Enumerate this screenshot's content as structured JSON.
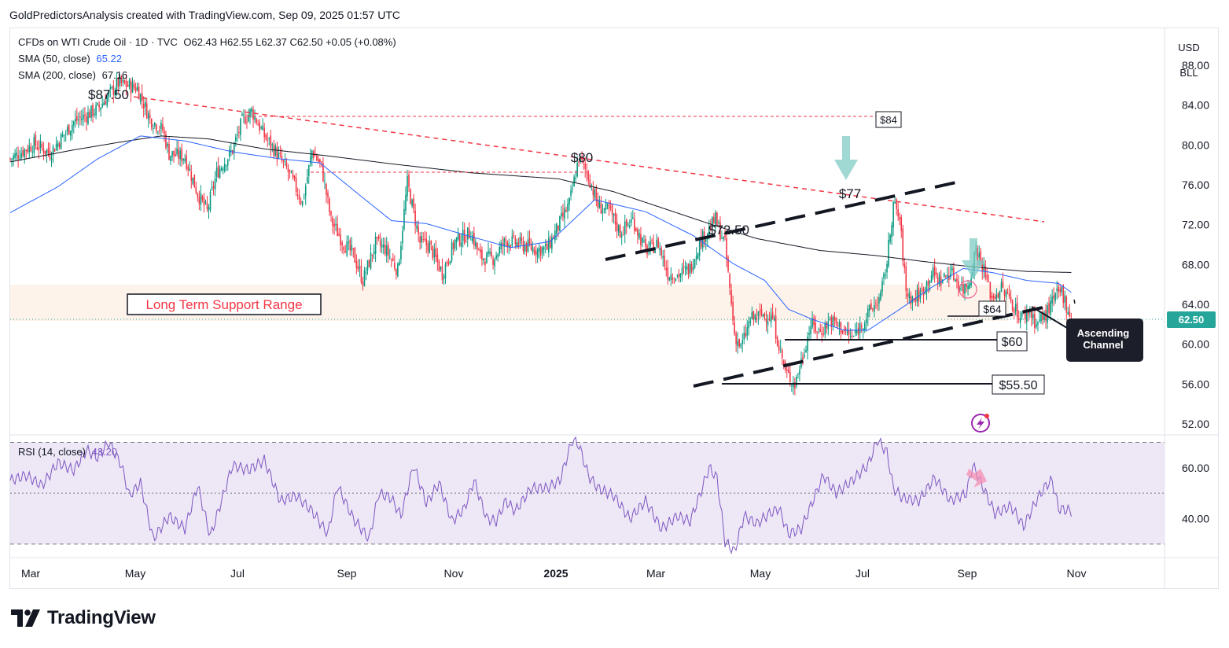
{
  "header": {
    "text": "GoldPredictorsAnalysis created with TradingView.com, Sep 09, 2025 01:57 UTC"
  },
  "legend": {
    "symbol": "CFDs on WTI Crude Oil · 1D · TVC",
    "ohlc": "O62.43  H62.55  L62.37  C62.50  +0.05 (+0.08%)",
    "sma50_label": "SMA (50, close)",
    "sma50_value": "65.22",
    "sma200_label": "SMA (200, close)",
    "sma200_value": "67.16",
    "rsi_label": "RSI (14, close)",
    "rsi_value": "43.20"
  },
  "price_scale": {
    "currency": "USD",
    "unit": "BLL",
    "current_price": "62.50"
  },
  "logo": {
    "text": "TradingView"
  },
  "colors": {
    "up": "#089981",
    "down": "#f23645",
    "sma50": "#2962ff",
    "sma200": "#131722",
    "rsi": "#7e57c2",
    "rsi_band": "#ede7f6",
    "resistance": "#f23645",
    "price_tag": "#26a69a",
    "arrow": "#80cbc4",
    "support_zone": "#fdf3ea"
  },
  "chart_data": {
    "type": "candlestick",
    "price_axis": {
      "ticks": [
        "52.00",
        "56.00",
        "60.00",
        "64.00",
        "68.00",
        "72.00",
        "76.00",
        "80.00",
        "84.00",
        "88.00"
      ],
      "range": [
        50.9,
        91.7
      ]
    },
    "time_axis": {
      "labels": [
        "Mar",
        "May",
        "Jul",
        "Sep",
        "Nov",
        "2025",
        "Mar",
        "May",
        "Jul",
        "Sep",
        "Nov"
      ],
      "bold": [
        "2025"
      ]
    },
    "rsi_axis": {
      "ticks": [
        "40.00",
        "60.00"
      ],
      "range": [
        25,
        72
      ],
      "bands": [
        30,
        50,
        70
      ]
    },
    "series_anchors": {
      "price": [
        [
          0,
          78.6
        ],
        [
          15,
          80.1
        ],
        [
          25,
          79.2
        ],
        [
          40,
          82.3
        ],
        [
          55,
          83.6
        ],
        [
          68,
          86.2
        ],
        [
          80,
          85.7
        ],
        [
          88,
          82.6
        ],
        [
          96,
          81.5
        ],
        [
          100,
          79.1
        ],
        [
          110,
          78.8
        ],
        [
          118,
          75.1
        ],
        [
          124,
          73.3
        ],
        [
          130,
          77.2
        ],
        [
          140,
          79.5
        ],
        [
          146,
          82.4
        ],
        [
          152,
          83.4
        ],
        [
          160,
          80.9
        ],
        [
          166,
          79.6
        ],
        [
          176,
          77.0
        ],
        [
          184,
          74.2
        ],
        [
          190,
          79.4
        ],
        [
          196,
          77.8
        ],
        [
          202,
          72.4
        ],
        [
          210,
          70.1
        ],
        [
          216,
          69.0
        ],
        [
          222,
          66.4
        ],
        [
          230,
          70.1
        ],
        [
          236,
          69.6
        ],
        [
          244,
          67.4
        ],
        [
          250,
          76.2
        ],
        [
          258,
          70.2
        ],
        [
          264,
          69.9
        ],
        [
          272,
          67.1
        ],
        [
          280,
          70.3
        ],
        [
          290,
          71.2
        ],
        [
          296,
          68.7
        ],
        [
          304,
          68.6
        ],
        [
          312,
          70.4
        ],
        [
          322,
          70.0
        ],
        [
          332,
          69.5
        ],
        [
          338,
          69.6
        ],
        [
          344,
          71.5
        ],
        [
          352,
          74.1
        ],
        [
          358,
          78.7
        ],
        [
          364,
          76.9
        ],
        [
          370,
          73.9
        ],
        [
          378,
          73.2
        ],
        [
          384,
          71.2
        ],
        [
          392,
          72.5
        ],
        [
          400,
          69.4
        ],
        [
          408,
          70.1
        ],
        [
          414,
          67.1
        ],
        [
          420,
          66.9
        ],
        [
          428,
          67.6
        ],
        [
          434,
          70.2
        ],
        [
          444,
          72.5
        ],
        [
          450,
          70.0
        ],
        [
          456,
          61.0
        ],
        [
          460,
          59.6
        ],
        [
          466,
          62.5
        ],
        [
          474,
          63.0
        ],
        [
          480,
          62.6
        ],
        [
          488,
          57.2
        ],
        [
          494,
          56.0
        ],
        [
          498,
          58.3
        ],
        [
          504,
          62.0
        ],
        [
          510,
          61.2
        ],
        [
          516,
          62.4
        ],
        [
          522,
          61.8
        ],
        [
          530,
          60.6
        ],
        [
          540,
          63.0
        ],
        [
          548,
          64.8
        ],
        [
          552,
          68.3
        ],
        [
          556,
          74.1
        ],
        [
          560,
          72.5
        ],
        [
          564,
          65.3
        ],
        [
          568,
          64.5
        ],
        [
          574,
          65.2
        ],
        [
          580,
          67.1
        ],
        [
          586,
          66.4
        ],
        [
          592,
          67.3
        ],
        [
          600,
          65.5
        ],
        [
          604,
          66.4
        ],
        [
          608,
          69.6
        ],
        [
          612,
          68.0
        ],
        [
          618,
          64.6
        ],
        [
          624,
          65.6
        ],
        [
          630,
          64.4
        ],
        [
          636,
          62.6
        ],
        [
          642,
          63.3
        ],
        [
          646,
          62.0
        ],
        [
          652,
          63.0
        ],
        [
          658,
          64.7
        ],
        [
          662,
          65.3
        ],
        [
          668,
          62.5
        ]
      ],
      "sma50": [
        [
          0,
          73.2
        ],
        [
          30,
          75.8
        ],
        [
          55,
          78.6
        ],
        [
          82,
          80.9
        ],
        [
          110,
          80.4
        ],
        [
          140,
          79.3
        ],
        [
          170,
          78.6
        ],
        [
          195,
          78.2
        ],
        [
          222,
          74.7
        ],
        [
          240,
          72.4
        ],
        [
          262,
          72.1
        ],
        [
          290,
          70.8
        ],
        [
          315,
          69.7
        ],
        [
          340,
          70.3
        ],
        [
          368,
          74.5
        ],
        [
          400,
          73.3
        ],
        [
          430,
          70.9
        ],
        [
          455,
          68.1
        ],
        [
          475,
          66.4
        ],
        [
          490,
          63.5
        ],
        [
          505,
          62.5
        ],
        [
          525,
          61.4
        ],
        [
          540,
          61.4
        ],
        [
          560,
          63.5
        ],
        [
          580,
          65.7
        ],
        [
          600,
          67.6
        ],
        [
          618,
          67.2
        ],
        [
          640,
          66.4
        ],
        [
          660,
          66.1
        ],
        [
          668,
          65.2
        ]
      ],
      "sma200": [
        [
          0,
          78.3
        ],
        [
          40,
          79.5
        ],
        [
          70,
          80.3
        ],
        [
          95,
          80.9
        ],
        [
          125,
          80.6
        ],
        [
          160,
          79.6
        ],
        [
          200,
          78.9
        ],
        [
          240,
          78.1
        ],
        [
          290,
          77.2
        ],
        [
          345,
          76.6
        ],
        [
          380,
          75.3
        ],
        [
          410,
          73.7
        ],
        [
          440,
          72.1
        ],
        [
          470,
          70.6
        ],
        [
          510,
          69.4
        ],
        [
          545,
          68.9
        ],
        [
          575,
          68.3
        ],
        [
          610,
          67.7
        ],
        [
          640,
          67.3
        ],
        [
          668,
          67.2
        ]
      ],
      "rsi": [
        [
          0,
          55
        ],
        [
          10,
          57
        ],
        [
          20,
          53
        ],
        [
          30,
          62
        ],
        [
          40,
          59
        ],
        [
          48,
          67
        ],
        [
          55,
          64
        ],
        [
          62,
          70
        ],
        [
          70,
          61
        ],
        [
          75,
          49
        ],
        [
          82,
          54
        ],
        [
          90,
          32
        ],
        [
          100,
          41
        ],
        [
          110,
          36
        ],
        [
          118,
          53
        ],
        [
          126,
          33
        ],
        [
          140,
          61
        ],
        [
          150,
          59
        ],
        [
          160,
          63
        ],
        [
          170,
          47
        ],
        [
          180,
          49
        ],
        [
          190,
          43
        ],
        [
          200,
          34
        ],
        [
          206,
          53
        ],
        [
          216,
          40
        ],
        [
          226,
          32
        ],
        [
          232,
          50
        ],
        [
          240,
          48
        ],
        [
          246,
          41
        ],
        [
          254,
          61
        ],
        [
          262,
          46
        ],
        [
          270,
          54
        ],
        [
          278,
          39
        ],
        [
          286,
          44
        ],
        [
          292,
          55
        ],
        [
          300,
          40
        ],
        [
          306,
          39
        ],
        [
          312,
          47
        ],
        [
          318,
          43
        ],
        [
          328,
          52
        ],
        [
          338,
          52
        ],
        [
          346,
          55
        ],
        [
          354,
          71
        ],
        [
          358,
          69
        ],
        [
          364,
          57
        ],
        [
          370,
          52
        ],
        [
          380,
          49
        ],
        [
          390,
          40
        ],
        [
          400,
          47
        ],
        [
          410,
          36
        ],
        [
          420,
          41
        ],
        [
          428,
          39
        ],
        [
          434,
          49
        ],
        [
          440,
          60
        ],
        [
          445,
          56
        ],
        [
          450,
          31
        ],
        [
          456,
          27
        ],
        [
          462,
          41
        ],
        [
          470,
          38
        ],
        [
          478,
          42
        ],
        [
          484,
          44
        ],
        [
          490,
          34
        ],
        [
          498,
          36
        ],
        [
          506,
          48
        ],
        [
          512,
          57
        ],
        [
          520,
          50
        ],
        [
          530,
          55
        ],
        [
          540,
          61
        ],
        [
          546,
          71
        ],
        [
          552,
          66
        ],
        [
          556,
          52
        ],
        [
          562,
          48
        ],
        [
          572,
          47
        ],
        [
          582,
          56
        ],
        [
          592,
          47
        ],
        [
          602,
          50
        ],
        [
          606,
          61
        ],
        [
          612,
          53
        ],
        [
          620,
          42
        ],
        [
          630,
          45
        ],
        [
          638,
          37
        ],
        [
          646,
          47
        ],
        [
          652,
          53
        ],
        [
          656,
          55
        ],
        [
          660,
          44
        ],
        [
          668,
          43
        ]
      ]
    },
    "annotations": {
      "price_labels": [
        "$87.50",
        "$80",
        "$72.50",
        "$77"
      ],
      "level_boxes": [
        "$84",
        "$64",
        "$60",
        "$55.50"
      ],
      "zone_label": "Long Term Support Range",
      "callout": "Ascending Channel"
    }
  }
}
